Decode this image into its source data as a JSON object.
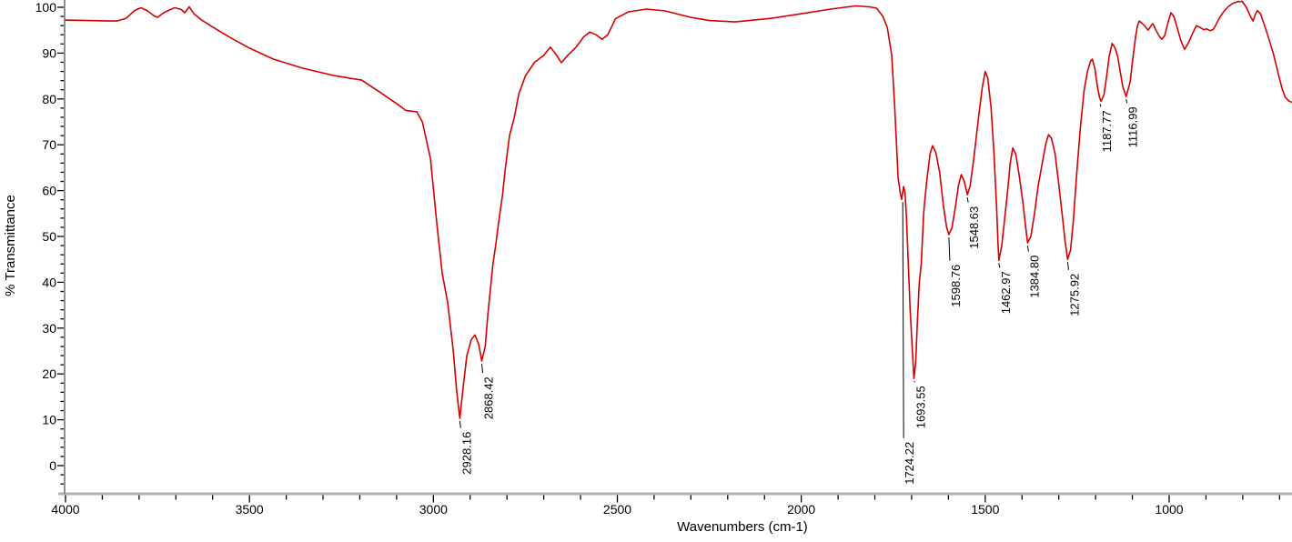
{
  "chart_data": {
    "type": "line",
    "title": "",
    "xlabel": "Wavenumbers (cm-1)",
    "ylabel": "% Transmittance",
    "x_axis": {
      "left_value": 4000,
      "right_value": 666,
      "reversed": true,
      "major_ticks": [
        4000,
        3500,
        3000,
        2500,
        2000,
        1500,
        1000
      ],
      "major_tick_labels": [
        "4000",
        "3500",
        "3000",
        "2500",
        "2000",
        "1500",
        "1000"
      ],
      "minor_tick_interval": 100,
      "minor_tick_min": 700
    },
    "y_axis": {
      "major_ticks": [
        0,
        10,
        20,
        30,
        40,
        50,
        60,
        70,
        80,
        90,
        100
      ],
      "major_tick_labels": [
        "0",
        "10",
        "20",
        "30",
        "40",
        "50",
        "60",
        "70",
        "80",
        "90",
        "100"
      ],
      "minor_tick_interval": 2,
      "minor_tick_min": -4,
      "visible_range": [
        -6,
        101.6
      ]
    },
    "grid": false,
    "legend": "none",
    "series": [
      {
        "name": "ir-spectrum-trace",
        "color": "#d40000",
        "points": [
          [
            4000,
            97.2
          ],
          [
            3940,
            97.1
          ],
          [
            3880,
            97.0
          ],
          [
            3860,
            97.0
          ],
          [
            3835,
            97.6
          ],
          [
            3812,
            99.3
          ],
          [
            3795,
            99.9
          ],
          [
            3777,
            99.2
          ],
          [
            3760,
            98.2
          ],
          [
            3750,
            97.8
          ],
          [
            3733,
            98.8
          ],
          [
            3715,
            99.5
          ],
          [
            3703,
            99.9
          ],
          [
            3685,
            99.5
          ],
          [
            3676,
            98.8
          ],
          [
            3669,
            99.5
          ],
          [
            3664,
            100.1
          ],
          [
            3658,
            99.4
          ],
          [
            3651,
            98.6
          ],
          [
            3630,
            97.2
          ],
          [
            3600,
            95.7
          ],
          [
            3550,
            93.3
          ],
          [
            3500,
            91.1
          ],
          [
            3435,
            88.7
          ],
          [
            3355,
            86.7
          ],
          [
            3270,
            85.1
          ],
          [
            3195,
            84.1
          ],
          [
            3140,
            81.2
          ],
          [
            3097,
            78.8
          ],
          [
            3075,
            77.5
          ],
          [
            3045,
            77.2
          ],
          [
            3030,
            75.0
          ],
          [
            3008,
            67.0
          ],
          [
            2991,
            53.0
          ],
          [
            2976,
            42.0
          ],
          [
            2961,
            35.5
          ],
          [
            2946,
            25.0
          ],
          [
            2937,
            16.5
          ],
          [
            2928.2,
            10.3
          ],
          [
            2920,
            16.5
          ],
          [
            2909,
            24.0
          ],
          [
            2897,
            27.5
          ],
          [
            2887,
            28.5
          ],
          [
            2877,
            26.5
          ],
          [
            2868.4,
            22.8
          ],
          [
            2859,
            26.0
          ],
          [
            2852,
            33.0
          ],
          [
            2845,
            38.5
          ],
          [
            2838,
            44.0
          ],
          [
            2830,
            48.5
          ],
          [
            2822,
            53.5
          ],
          [
            2812,
            59.0
          ],
          [
            2805,
            64.5
          ],
          [
            2793,
            72.0
          ],
          [
            2780,
            76.0
          ],
          [
            2768,
            81.0
          ],
          [
            2750,
            85.0
          ],
          [
            2725,
            88.0
          ],
          [
            2700,
            89.5
          ],
          [
            2682,
            91.3
          ],
          [
            2665,
            89.5
          ],
          [
            2652,
            87.9
          ],
          [
            2635,
            89.5
          ],
          [
            2612,
            91.3
          ],
          [
            2592,
            93.5
          ],
          [
            2575,
            94.6
          ],
          [
            2558,
            94.0
          ],
          [
            2541,
            93.0
          ],
          [
            2526,
            94.0
          ],
          [
            2505,
            97.5
          ],
          [
            2470,
            99.0
          ],
          [
            2420,
            99.6
          ],
          [
            2370,
            99.2
          ],
          [
            2300,
            97.8
          ],
          [
            2250,
            97.1
          ],
          [
            2180,
            96.8
          ],
          [
            2080,
            97.6
          ],
          [
            2000,
            98.6
          ],
          [
            1920,
            99.6
          ],
          [
            1853,
            100.3
          ],
          [
            1815,
            100.1
          ],
          [
            1795,
            99.8
          ],
          [
            1778,
            98.0
          ],
          [
            1766,
            95.5
          ],
          [
            1754,
            89.5
          ],
          [
            1747,
            79.5
          ],
          [
            1742,
            71.5
          ],
          [
            1737,
            63.0
          ],
          [
            1731,
            59.5
          ],
          [
            1727,
            58.1
          ],
          [
            1722,
            60.9
          ],
          [
            1718,
            59.5
          ],
          [
            1714,
            54.0
          ],
          [
            1709,
            44.0
          ],
          [
            1704,
            34.0
          ],
          [
            1698,
            25.0
          ],
          [
            1693.6,
            19.0
          ],
          [
            1689,
            22.5
          ],
          [
            1684,
            32.0
          ],
          [
            1679,
            40.0
          ],
          [
            1674,
            44.0
          ],
          [
            1667,
            55.5
          ],
          [
            1659,
            62.0
          ],
          [
            1650,
            68.0
          ],
          [
            1643,
            69.8
          ],
          [
            1634,
            68.3
          ],
          [
            1624,
            64.0
          ],
          [
            1614,
            57.0
          ],
          [
            1605,
            52.0
          ],
          [
            1598.8,
            50.4
          ],
          [
            1590,
            52.0
          ],
          [
            1580,
            57.0
          ],
          [
            1573,
            61.0
          ],
          [
            1565,
            63.5
          ],
          [
            1557,
            62.0
          ],
          [
            1548.6,
            59.1
          ],
          [
            1541,
            61.0
          ],
          [
            1531,
            67.0
          ],
          [
            1518,
            76.0
          ],
          [
            1508,
            82.5
          ],
          [
            1500,
            86.0
          ],
          [
            1493,
            84.5
          ],
          [
            1484,
            78.0
          ],
          [
            1476,
            68.0
          ],
          [
            1469,
            56.0
          ],
          [
            1465,
            48.0
          ],
          [
            1463,
            44.8
          ],
          [
            1455,
            48.0
          ],
          [
            1447,
            54.0
          ],
          [
            1439,
            60.0
          ],
          [
            1432,
            66.0
          ],
          [
            1425,
            69.3
          ],
          [
            1417,
            68.0
          ],
          [
            1407,
            63.0
          ],
          [
            1397,
            57.0
          ],
          [
            1390,
            52.0
          ],
          [
            1384.8,
            48.6
          ],
          [
            1376,
            50.0
          ],
          [
            1366,
            55.0
          ],
          [
            1356,
            61.0
          ],
          [
            1345,
            66.0
          ],
          [
            1335,
            70.3
          ],
          [
            1328,
            72.2
          ],
          [
            1320,
            71.4
          ],
          [
            1310,
            68.0
          ],
          [
            1301,
            62.0
          ],
          [
            1291,
            55.0
          ],
          [
            1283,
            49.0
          ],
          [
            1275.9,
            45.0
          ],
          [
            1268,
            47.0
          ],
          [
            1261,
            53.0
          ],
          [
            1251,
            64.0
          ],
          [
            1241,
            74.0
          ],
          [
            1231,
            82.0
          ],
          [
            1222,
            86.0
          ],
          [
            1214,
            88.2
          ],
          [
            1209,
            88.7
          ],
          [
            1202,
            86.7
          ],
          [
            1195,
            82.7
          ],
          [
            1189,
            80.2
          ],
          [
            1185,
            79.5
          ],
          [
            1177,
            81.0
          ],
          [
            1170,
            85.0
          ],
          [
            1163,
            89.3
          ],
          [
            1155,
            92.1
          ],
          [
            1148,
            91.3
          ],
          [
            1140,
            89.3
          ],
          [
            1133,
            86.0
          ],
          [
            1126,
            82.7
          ],
          [
            1117,
            80.5
          ],
          [
            1106,
            83.7
          ],
          [
            1099,
            88.7
          ],
          [
            1091,
            93.7
          ],
          [
            1086,
            96.0
          ],
          [
            1081,
            97.0
          ],
          [
            1074,
            96.5
          ],
          [
            1067,
            96.0
          ],
          [
            1057,
            95.0
          ],
          [
            1049,
            96.0
          ],
          [
            1044,
            96.4
          ],
          [
            1037,
            95.2
          ],
          [
            1027,
            93.7
          ],
          [
            1020,
            93.0
          ],
          [
            1012,
            93.8
          ],
          [
            1002,
            97.0
          ],
          [
            995,
            98.8
          ],
          [
            987,
            98.0
          ],
          [
            978,
            95.5
          ],
          [
            968,
            92.7
          ],
          [
            958,
            90.8
          ],
          [
            948,
            92.2
          ],
          [
            938,
            94.0
          ],
          [
            926,
            96.0
          ],
          [
            916,
            95.6
          ],
          [
            906,
            95.1
          ],
          [
            899,
            95.3
          ],
          [
            889,
            94.9
          ],
          [
            881,
            95.1
          ],
          [
            874,
            96.0
          ],
          [
            864,
            97.6
          ],
          [
            852,
            99.0
          ],
          [
            840,
            100.1
          ],
          [
            828,
            100.8
          ],
          [
            815,
            101.2
          ],
          [
            802,
            101.3
          ],
          [
            790,
            100.0
          ],
          [
            780,
            98.2
          ],
          [
            772,
            97.0
          ],
          [
            765,
            98.6
          ],
          [
            760,
            99.3
          ],
          [
            752,
            98.6
          ],
          [
            744,
            96.8
          ],
          [
            735,
            94.7
          ],
          [
            726,
            92.3
          ],
          [
            717,
            90.0
          ],
          [
            709,
            87.3
          ],
          [
            701,
            84.7
          ],
          [
            692,
            82.0
          ],
          [
            684,
            80.3
          ],
          [
            675,
            79.6
          ],
          [
            668,
            79.3
          ]
        ]
      }
    ],
    "peak_labels": [
      {
        "label": "2928.16",
        "wavenumber": 2928.16,
        "transmittance_min": 10.3,
        "leader_end_T": 7.8
      },
      {
        "label": "2868.42",
        "wavenumber": 2868.42,
        "transmittance_min": 22.8,
        "leader_end_T": 19.8
      },
      {
        "label": "1724.22",
        "wavenumber": 1724.22,
        "transmittance_min": 58.1,
        "leader_end_T": 5.6
      },
      {
        "label": "1693.55",
        "wavenumber": 1693.55,
        "transmittance_min": 19.0,
        "leader_end_T": 17.8
      },
      {
        "label": "1598.76",
        "wavenumber": 1598.76,
        "transmittance_min": 50.4,
        "leader_end_T": 44.3
      },
      {
        "label": "1548.63",
        "wavenumber": 1548.63,
        "transmittance_min": 59.1,
        "leader_end_T": 57.0
      },
      {
        "label": "1462.97",
        "wavenumber": 1462.97,
        "transmittance_min": 44.8,
        "leader_end_T": 42.8
      },
      {
        "label": "1384.80",
        "wavenumber": 1384.8,
        "transmittance_min": 48.6,
        "leader_end_T": 46.3
      },
      {
        "label": "1275.92",
        "wavenumber": 1275.92,
        "transmittance_min": 45.0,
        "leader_end_T": 42.3
      },
      {
        "label": "1187.77",
        "wavenumber": 1187.77,
        "transmittance_min": 79.5,
        "leader_end_T": 77.9
      },
      {
        "label": "1116.99",
        "wavenumber": 1116.99,
        "transmittance_min": 80.5,
        "leader_end_T": 78.7
      }
    ],
    "colors": {
      "trace": "#d40000",
      "x_axis_line": "#b2b2b2",
      "y_axis_line": "#8e8e8e",
      "ticks_and_text": "#000000",
      "background": "#ffffff"
    }
  }
}
